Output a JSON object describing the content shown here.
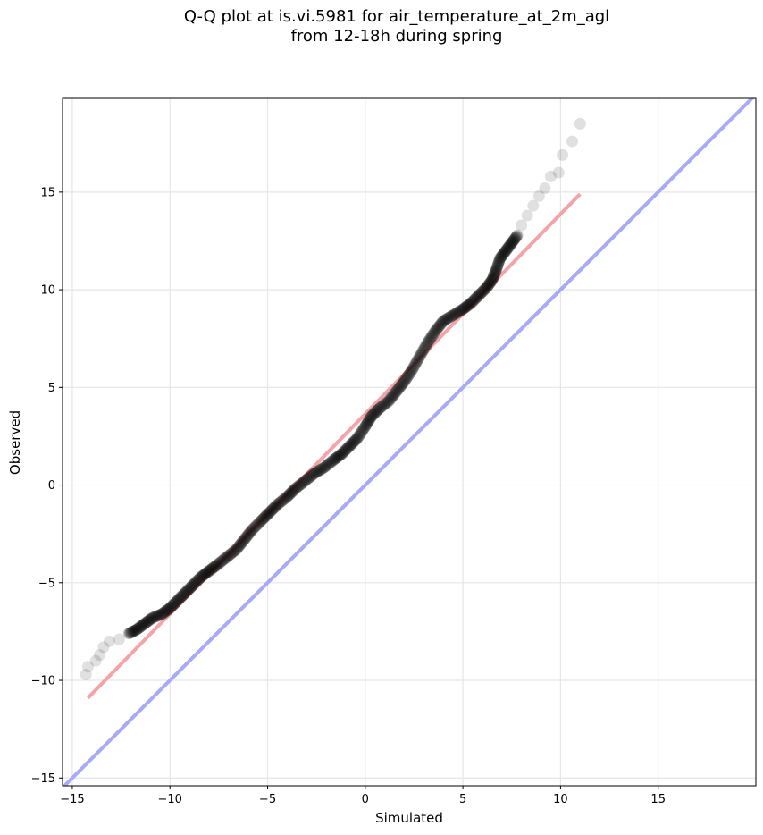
{
  "chart_data": {
    "type": "scatter",
    "title_line1": "Q-Q plot at is.vi.5981 for air_temperature_at_2m_agl",
    "title_line2": "from 12-18h during spring",
    "xlabel": "Simulated",
    "ylabel": "Observed",
    "xlim": [
      -15.5,
      20
    ],
    "ylim": [
      -15.4,
      19.8
    ],
    "xticks": [
      -15,
      -10,
      -5,
      0,
      5,
      10,
      15
    ],
    "yticks": [
      -15,
      -10,
      -5,
      0,
      5,
      10,
      15
    ],
    "tick_labels": [
      "−15",
      "−10",
      "−5",
      "0",
      "5",
      "10",
      "15"
    ],
    "grid": true,
    "colors": {
      "points": "#000000",
      "fit_line": "#f4a3a6",
      "identity_line": "#a7aaf5"
    },
    "series": [
      {
        "quantile_points": [
          [
            -14.3,
            -9.7
          ],
          [
            -14.2,
            -9.3
          ],
          [
            -13.8,
            -9.0
          ],
          [
            -13.6,
            -8.7
          ],
          [
            -13.4,
            -8.3
          ],
          [
            -13.1,
            -8.0
          ],
          [
            -12.6,
            -7.9
          ],
          [
            -12.1,
            -7.6
          ],
          [
            -11.7,
            -7.4
          ],
          [
            -11.3,
            -7.1
          ],
          [
            -10.9,
            -6.8
          ],
          [
            -10.4,
            -6.6
          ],
          [
            -10.0,
            -6.3
          ],
          [
            -9.6,
            -5.9
          ],
          [
            -9.2,
            -5.5
          ],
          [
            -8.8,
            -5.1
          ],
          [
            -8.4,
            -4.7
          ],
          [
            -8.0,
            -4.4
          ],
          [
            -7.6,
            -4.1
          ],
          [
            -7.1,
            -3.7
          ],
          [
            -6.6,
            -3.3
          ],
          [
            -6.2,
            -2.8
          ],
          [
            -5.8,
            -2.3
          ],
          [
            -5.3,
            -1.8
          ],
          [
            -4.9,
            -1.4
          ],
          [
            -4.5,
            -1.0
          ],
          [
            -4.0,
            -0.6
          ],
          [
            -3.6,
            -0.2
          ],
          [
            -3.1,
            0.2
          ],
          [
            -2.6,
            0.6
          ],
          [
            -2.1,
            0.9
          ],
          [
            -1.6,
            1.3
          ],
          [
            -1.2,
            1.6
          ],
          [
            -0.8,
            2.0
          ],
          [
            -0.4,
            2.4
          ],
          [
            0.0,
            3.0
          ],
          [
            0.3,
            3.5
          ],
          [
            0.7,
            3.9
          ],
          [
            1.2,
            4.3
          ],
          [
            1.6,
            4.8
          ],
          [
            2.0,
            5.3
          ],
          [
            2.4,
            5.9
          ],
          [
            2.8,
            6.6
          ],
          [
            3.2,
            7.3
          ],
          [
            3.6,
            7.9
          ],
          [
            4.0,
            8.4
          ],
          [
            4.5,
            8.7
          ],
          [
            5.0,
            9.0
          ],
          [
            5.4,
            9.3
          ],
          [
            5.8,
            9.7
          ],
          [
            6.2,
            10.1
          ],
          [
            6.5,
            10.5
          ],
          [
            6.7,
            11.0
          ],
          [
            6.9,
            11.6
          ],
          [
            7.2,
            12.0
          ],
          [
            7.5,
            12.4
          ],
          [
            7.8,
            12.8
          ],
          [
            8.0,
            13.3
          ],
          [
            8.3,
            13.8
          ],
          [
            8.6,
            14.3
          ],
          [
            8.9,
            14.8
          ],
          [
            9.2,
            15.2
          ],
          [
            9.5,
            15.8
          ],
          [
            9.9,
            16.0
          ],
          [
            10.1,
            16.9
          ],
          [
            10.6,
            17.6
          ],
          [
            11.0,
            18.5
          ]
        ]
      }
    ],
    "fit_line": [
      [
        -14.2,
        -10.9
      ],
      [
        11.0,
        14.9
      ]
    ],
    "identity_line": [
      [
        -15.5,
        -15.5
      ],
      [
        20,
        20
      ]
    ]
  }
}
